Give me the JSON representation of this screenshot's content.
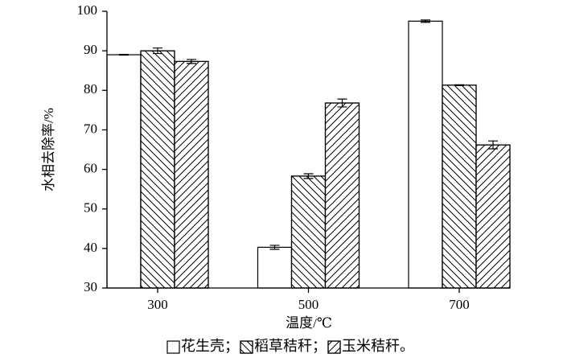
{
  "chart_data": {
    "type": "bar",
    "x_label": "温度/℃",
    "y_label": "水相去除率/%",
    "categories": [
      "300",
      "500",
      "700"
    ],
    "series": [
      {
        "name": "花生壳；",
        "color": "#ffffff",
        "hatch": "none",
        "values": [
          89,
          40.3,
          97.5
        ],
        "errors": [
          0.1,
          0.5,
          0.3
        ]
      },
      {
        "name": "稻草秸秆；",
        "color": "#ffffff",
        "hatch": "\\",
        "values": [
          90,
          58.3,
          81.3
        ],
        "errors": [
          0.7,
          0.6,
          0.1
        ]
      },
      {
        "name": "玉米秸秆。",
        "color": "#ffffff",
        "hatch": "/",
        "values": [
          87.3,
          76.8,
          66.2
        ],
        "errors": [
          0.5,
          1.0,
          1.0
        ]
      }
    ],
    "ylim": [
      30,
      100
    ],
    "yticks": [
      30,
      40,
      50,
      60,
      70,
      80,
      90,
      100
    ],
    "grid": false
  }
}
